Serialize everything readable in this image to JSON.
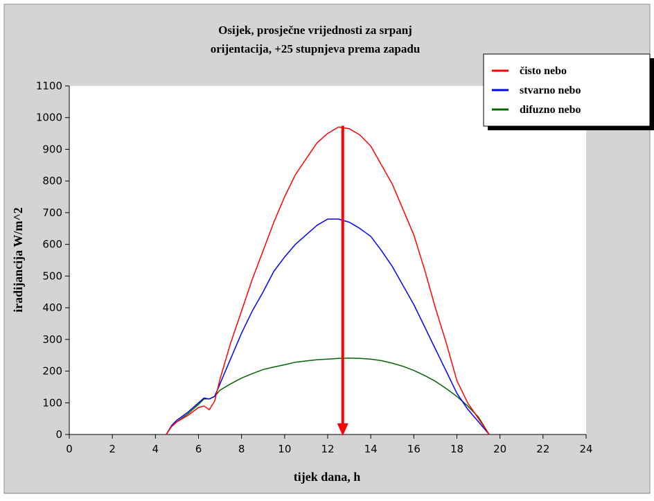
{
  "chart_data": {
    "type": "line",
    "title": [
      "Osijek, prosječne vrijednosti za srpanj",
      "orijentacija, +25 stupnjeva prema zapadu"
    ],
    "xlabel": "tijek dana, h",
    "ylabel": "iradijancija W/m^2",
    "xlim": [
      0,
      24
    ],
    "ylim": [
      0,
      1100
    ],
    "xticks": [
      0,
      2,
      4,
      6,
      8,
      10,
      12,
      14,
      16,
      18,
      20,
      22,
      24
    ],
    "yticks": [
      0,
      100,
      200,
      300,
      400,
      500,
      600,
      700,
      800,
      900,
      1000,
      1100
    ],
    "grid": false,
    "legend_position": "top-right",
    "series": [
      {
        "name": "čisto nebo",
        "color": "#ff0000",
        "x": [
          4.5,
          4.75,
          5,
          5.5,
          6,
          6.25,
          6.5,
          6.75,
          7,
          7.5,
          8,
          8.5,
          9,
          9.5,
          10,
          10.5,
          11,
          11.5,
          12,
          12.5,
          13,
          13.5,
          14,
          14.5,
          15,
          15.5,
          16,
          16.5,
          17,
          17.5,
          18,
          18.5,
          19,
          19.5
        ],
        "y": [
          0,
          25,
          40,
          60,
          85,
          90,
          78,
          105,
          175,
          290,
          390,
          490,
          580,
          670,
          750,
          820,
          870,
          920,
          950,
          970,
          965,
          945,
          910,
          850,
          790,
          710,
          630,
          520,
          400,
          290,
          170,
          100,
          50,
          0
        ]
      },
      {
        "name": "stvarno nebo",
        "color": "#0000ff",
        "x": [
          4.5,
          4.75,
          5,
          5.5,
          6,
          6.25,
          6.5,
          6.75,
          7,
          7.5,
          8,
          8.5,
          9,
          9.5,
          10,
          10.5,
          11,
          11.5,
          12,
          12.5,
          13,
          13.5,
          14,
          14.5,
          15,
          15.5,
          16,
          16.5,
          17,
          17.5,
          18,
          18.5,
          19,
          19.5
        ],
        "y": [
          0,
          28,
          45,
          70,
          100,
          115,
          112,
          120,
          160,
          240,
          320,
          390,
          450,
          515,
          560,
          600,
          630,
          660,
          680,
          680,
          670,
          650,
          625,
          580,
          530,
          470,
          410,
          340,
          270,
          200,
          130,
          80,
          40,
          0
        ]
      },
      {
        "name": "difuzno nebo",
        "color": "#006400",
        "x": [
          4.5,
          4.75,
          5,
          5.5,
          6,
          6.25,
          6.5,
          6.75,
          7,
          7.5,
          8,
          8.5,
          9,
          9.5,
          10,
          10.5,
          11,
          11.5,
          12,
          12.5,
          13,
          13.5,
          14,
          14.5,
          15,
          15.5,
          16,
          16.5,
          17,
          17.5,
          18,
          18.5,
          19,
          19.5
        ],
        "y": [
          0,
          25,
          40,
          65,
          95,
          112,
          112,
          120,
          140,
          160,
          178,
          192,
          205,
          213,
          220,
          228,
          232,
          236,
          238,
          240,
          241,
          240,
          238,
          233,
          225,
          215,
          202,
          186,
          168,
          145,
          120,
          90,
          55,
          0
        ]
      }
    ],
    "annotations": [
      {
        "type": "vertical-arrow",
        "x": 12.7,
        "y_from": 970,
        "y_to": 0,
        "color": "#ff0000"
      }
    ],
    "colors": {
      "outer_background": "#d4d4d4",
      "plot_background": "#ffffff",
      "outer_border": "#888888",
      "legend_shadow": "#000000"
    }
  }
}
